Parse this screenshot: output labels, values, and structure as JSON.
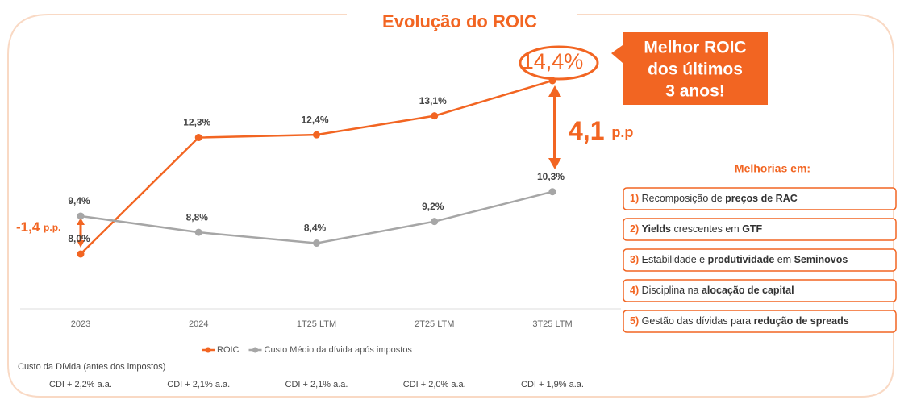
{
  "chart_data": {
    "type": "line",
    "title": "Evolução do ROIC",
    "categories": [
      "2023",
      "2024",
      "1T25 LTM",
      "2T25 LTM",
      "3T25 LTM"
    ],
    "series": [
      {
        "name": "ROIC",
        "color": "#f26522",
        "values": [
          8.0,
          12.3,
          12.4,
          13.1,
          14.4
        ],
        "value_labels": [
          "8,0%",
          "12,3%",
          "12,4%",
          "13,1%",
          "14,4%"
        ]
      },
      {
        "name": "Custo Médio da dívida após impostos",
        "color": "#a6a6a6",
        "values": [
          9.4,
          8.8,
          8.4,
          9.2,
          10.3
        ],
        "value_labels": [
          "9,4%",
          "8,8%",
          "8,4%",
          "9,2%",
          "10,3%"
        ]
      }
    ],
    "gap_start": {
      "value": "-1,4",
      "unit": "p.p."
    },
    "gap_end": {
      "value": "4,1",
      "unit": "p.p"
    },
    "callout": [
      "Melhor ROIC",
      "dos últimos",
      "3 anos!"
    ],
    "debt_cost_title": "Custo da Dívida (antes dos impostos)",
    "debt_cost": [
      "CDI +  2,2% a.a.",
      "CDI + 2,1% a.a.",
      "CDI + 2,1% a.a.",
      "CDI + 2,0% a.a.",
      "CDI + 1,9% a.a."
    ],
    "improvements_title": "Melhorias em:",
    "improvements": [
      {
        "number": "1)",
        "parts": [
          {
            "text": "Recomposição de ",
            "bold": false
          },
          {
            "text": "preços de RAC",
            "bold": true
          }
        ]
      },
      {
        "number": "2)",
        "parts": [
          {
            "text": "Yields",
            "bold": true
          },
          {
            "text": " crescentes em ",
            "bold": false
          },
          {
            "text": "GTF",
            "bold": true
          }
        ]
      },
      {
        "number": "3)",
        "parts": [
          {
            "text": "Estabilidade e ",
            "bold": false
          },
          {
            "text": "produtividade",
            "bold": true
          },
          {
            "text": " em ",
            "bold": false
          },
          {
            "text": "Seminovos",
            "bold": true
          }
        ]
      },
      {
        "number": "4)",
        "parts": [
          {
            "text": "Disciplina na ",
            "bold": false
          },
          {
            "text": "alocação de capital",
            "bold": true
          }
        ]
      },
      {
        "number": "5)",
        "parts": [
          {
            "text": "Gestão das dívidas para ",
            "bold": false
          },
          {
            "text": "redução de spreads",
            "bold": true
          }
        ]
      }
    ]
  }
}
